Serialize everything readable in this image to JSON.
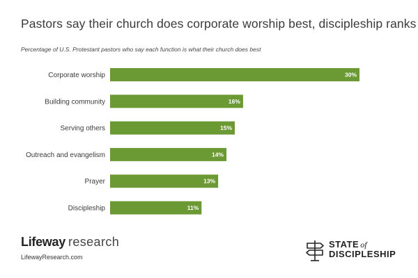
{
  "header": {
    "title": "Pastors say their church does corporate worship best, discipleship ranks low",
    "subtitle": "Percentage of U.S. Protestant pastors who say each function is what their church does best"
  },
  "colors": {
    "bar": "#6b9a35",
    "label_text": "#3a3a3a",
    "value_text": "#ffffff"
  },
  "chart_data": {
    "type": "bar",
    "orientation": "horizontal",
    "title": "Pastors say their church does corporate worship best, discipleship ranks low",
    "subtitle": "Percentage of U.S. Protestant pastors who say each function is what their church does best",
    "categories": [
      "Corporate worship",
      "Building community",
      "Serving others",
      "Outreach and evangelism",
      "Prayer",
      "Discipleship"
    ],
    "values": [
      30,
      16,
      15,
      14,
      13,
      11
    ],
    "value_labels": [
      "30%",
      "16%",
      "15%",
      "14%",
      "13%",
      "11%"
    ],
    "xlim": [
      0,
      30
    ],
    "grid": false,
    "legend": false
  },
  "footer": {
    "brand_bold": "Lifeway",
    "brand_light": "research",
    "website": "LifewayResearch.com",
    "logo_state": "STATE",
    "logo_of": "of",
    "logo_discipleship": "DISCIPLESHIP",
    "logo_icon": "signpost-icon"
  }
}
